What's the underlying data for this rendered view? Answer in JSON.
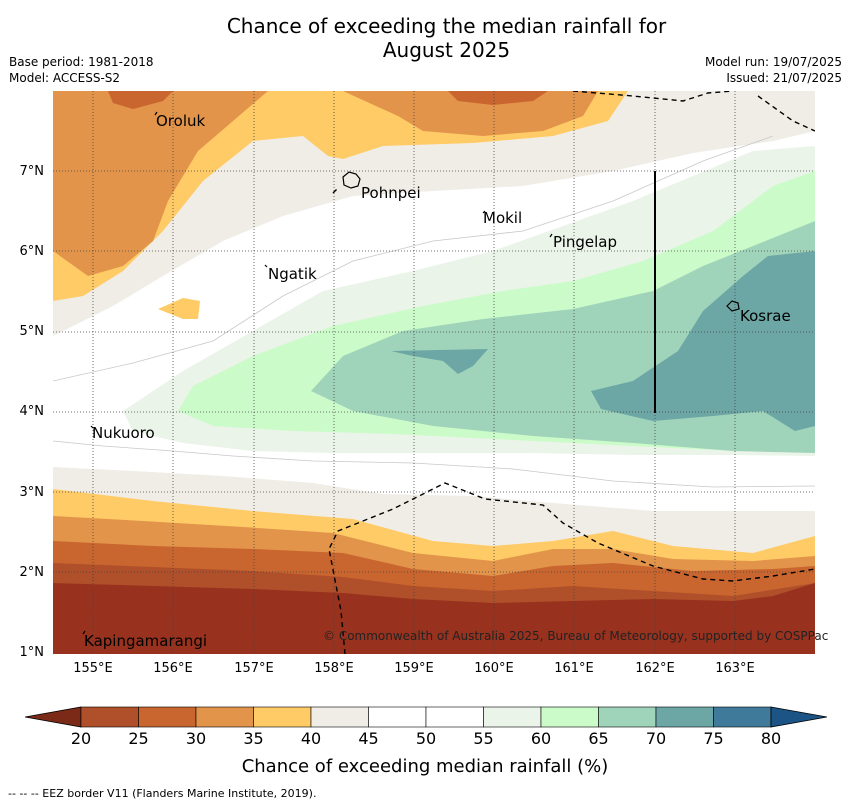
{
  "title_line1": "Chance of exceeding the median rainfall for",
  "title_line2": "August 2025",
  "base_period": "Base period: 1981-2018",
  "model": "Model: ACCESS-S2",
  "model_run": "Model run: 19/07/2025",
  "issued": "Issued: 21/07/2025",
  "places": {
    "oroluk": "Oroluk",
    "pohnpei": "Pohnpei",
    "mokil": "Mokil",
    "pingelap": "Pingelap",
    "ngatik": "Ngatik",
    "kosrae": "Kosrae",
    "nukuoro": "Nukuoro",
    "kapingamarangi": "Kapingamarangi"
  },
  "copyright": "© Commonwealth of Australia 2025, Bureau of Meteorology, supported by COSPPac",
  "lat_ticks": [
    "7°N",
    "6°N",
    "5°N",
    "4°N",
    "3°N",
    "2°N",
    "1°N"
  ],
  "lon_ticks": [
    "155°E",
    "156°E",
    "157°E",
    "158°E",
    "159°E",
    "160°E",
    "161°E",
    "162°E",
    "163°E"
  ],
  "colorbar": {
    "ticks": [
      "20",
      "25",
      "30",
      "35",
      "40",
      "45",
      "50",
      "55",
      "60",
      "65",
      "70",
      "75",
      "80"
    ],
    "colors": [
      "#b0502a",
      "#c9652f",
      "#e2944a",
      "#fecb66",
      "#f0ede7",
      "#ffffff",
      "#ffffff",
      "#eaf4e8",
      "#ccfbca",
      "#a0d4ba",
      "#6ca6a5",
      "#3f7a9a"
    ],
    "under_color": "#7a2a16",
    "over_color": "#1c5585",
    "label": "Chance of exceeding median rainfall (%)"
  },
  "footnote": "--  --  -- EEZ border V11 (Flanders Marine Institute, 2019).",
  "map_colors": {
    "dark_brown": "#98321e",
    "brown2": "#b0502a",
    "brown3": "#c9652f",
    "orange": "#e2944a",
    "yellow": "#fecb66",
    "beige": "#f0ede7",
    "pale_green": "#eaf4e8",
    "light_green": "#ccfbca",
    "green_teal": "#a0d4ba",
    "teal": "#6ca6a5"
  }
}
